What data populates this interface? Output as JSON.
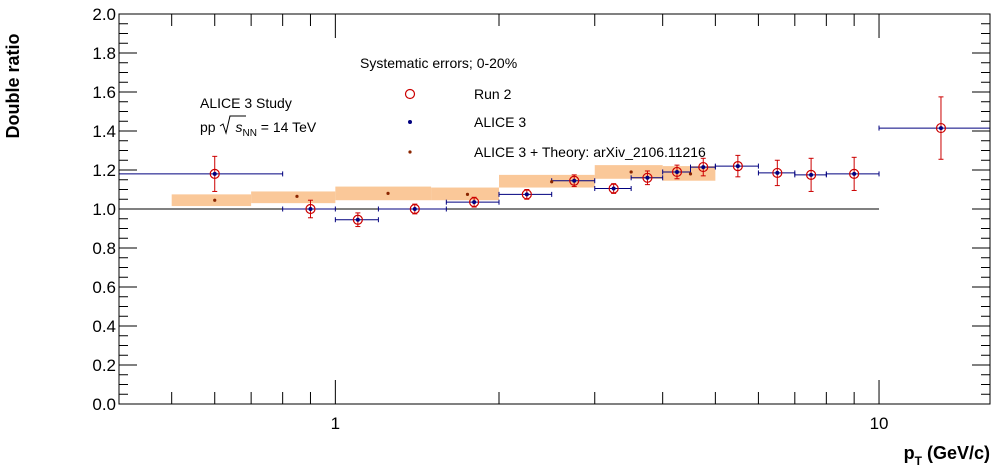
{
  "chart_data": {
    "type": "scatter",
    "xlabel": "p",
    "xlabel_sub": "T",
    "xlabel_unit": "(GeV/c)",
    "ylabel": "Double ratio",
    "x_scale": "log",
    "xlim": [
      0.4,
      16
    ],
    "ylim": [
      0,
      2
    ],
    "yticks": [
      0.0,
      0.2,
      0.4,
      0.6,
      0.8,
      1.0,
      1.2,
      1.4,
      1.6,
      1.8,
      2.0
    ],
    "ytick_labels": [
      "0.0",
      "0.2",
      "0.4",
      "0.6",
      "0.8",
      "1.0",
      "1.2",
      "1.4",
      "1.6",
      "1.8",
      "2.0"
    ],
    "xtick_major": [
      1,
      10
    ],
    "xtick_labels": [
      "1",
      "10"
    ],
    "reference_line_y": 1.0,
    "reference_line_xrange": [
      0.4,
      10
    ],
    "legend": {
      "header": "Systematic errors; 0-20%",
      "entries": [
        "Run 2",
        "ALICE 3",
        "ALICE 3 + Theory: arXiv_2106.11216"
      ],
      "placement": "top-center"
    },
    "annotation": {
      "line1": "ALICE 3 Study",
      "line2_prefix": "pp ",
      "line2_sqrt": "s",
      "line2_sub": "NN",
      "line2_suffix": " = 14 TeV"
    },
    "series": [
      {
        "name": "Run 2",
        "marker": "open-circle",
        "color": "#cc0000",
        "points": [
          {
            "x": 0.6,
            "y": 1.18,
            "err": 0.09
          },
          {
            "x": 0.9,
            "y": 1.0,
            "err": 0.045
          },
          {
            "x": 1.1,
            "y": 0.945,
            "err": 0.035
          },
          {
            "x": 1.4,
            "y": 1.0,
            "err": 0.025
          },
          {
            "x": 1.8,
            "y": 1.035,
            "err": 0.025
          },
          {
            "x": 2.25,
            "y": 1.075,
            "err": 0.025
          },
          {
            "x": 2.75,
            "y": 1.145,
            "err": 0.03
          },
          {
            "x": 3.25,
            "y": 1.105,
            "err": 0.025
          },
          {
            "x": 3.75,
            "y": 1.16,
            "err": 0.035
          },
          {
            "x": 4.25,
            "y": 1.19,
            "err": 0.035
          },
          {
            "x": 4.75,
            "y": 1.215,
            "err": 0.045
          },
          {
            "x": 5.5,
            "y": 1.22,
            "err": 0.055
          },
          {
            "x": 6.5,
            "y": 1.185,
            "err": 0.065
          },
          {
            "x": 7.5,
            "y": 1.175,
            "err": 0.085
          },
          {
            "x": 9.0,
            "y": 1.18,
            "err": 0.085
          },
          {
            "x": 13.0,
            "y": 1.415,
            "err": 0.16
          }
        ]
      },
      {
        "name": "ALICE 3",
        "marker": "dot",
        "color": "#00007f",
        "points": [
          {
            "x": 0.6,
            "y": 1.18,
            "xlo": 0.4,
            "xhi": 0.8
          },
          {
            "x": 0.9,
            "y": 1.0,
            "xlo": 0.8,
            "xhi": 1.0
          },
          {
            "x": 1.1,
            "y": 0.945,
            "xlo": 1.0,
            "xhi": 1.2
          },
          {
            "x": 1.4,
            "y": 1.0,
            "xlo": 1.2,
            "xhi": 1.6
          },
          {
            "x": 1.8,
            "y": 1.035,
            "xlo": 1.6,
            "xhi": 2.0
          },
          {
            "x": 2.25,
            "y": 1.075,
            "xlo": 2.0,
            "xhi": 2.5
          },
          {
            "x": 2.75,
            "y": 1.145,
            "xlo": 2.5,
            "xhi": 3.0
          },
          {
            "x": 3.25,
            "y": 1.105,
            "xlo": 3.0,
            "xhi": 3.5
          },
          {
            "x": 3.75,
            "y": 1.16,
            "xlo": 3.5,
            "xhi": 4.0
          },
          {
            "x": 4.25,
            "y": 1.19,
            "xlo": 4.0,
            "xhi": 4.5
          },
          {
            "x": 4.75,
            "y": 1.215,
            "xlo": 4.5,
            "xhi": 5.0
          },
          {
            "x": 5.5,
            "y": 1.22,
            "xlo": 5.0,
            "xhi": 6.0
          },
          {
            "x": 6.5,
            "y": 1.185,
            "xlo": 6.0,
            "xhi": 7.0
          },
          {
            "x": 7.5,
            "y": 1.175,
            "xlo": 7.0,
            "xhi": 8.0
          },
          {
            "x": 9.0,
            "y": 1.18,
            "xlo": 8.0,
            "xhi": 10.0
          },
          {
            "x": 13.0,
            "y": 1.415,
            "xlo": 10.0,
            "xhi": 16.0
          }
        ]
      },
      {
        "name": "ALICE 3 + Theory: arXiv_2106.11216",
        "marker": "small-dot",
        "color": "#8b2500",
        "band_color": "#fac899",
        "points": [
          {
            "x": 0.6,
            "y": 1.045,
            "xlo": 0.5,
            "xhi": 0.7,
            "ylo": 1.015,
            "yhi": 1.075
          },
          {
            "x": 0.85,
            "y": 1.065,
            "xlo": 0.7,
            "xhi": 1.0,
            "ylo": 1.03,
            "yhi": 1.09
          },
          {
            "x": 1.25,
            "y": 1.08,
            "xlo": 1.0,
            "xhi": 1.5,
            "ylo": 1.045,
            "yhi": 1.115
          },
          {
            "x": 1.75,
            "y": 1.075,
            "xlo": 1.5,
            "xhi": 2.0,
            "ylo": 1.045,
            "yhi": 1.11
          },
          {
            "x": 2.5,
            "y": 1.14,
            "xlo": 2.0,
            "xhi": 3.0,
            "ylo": 1.11,
            "yhi": 1.175
          },
          {
            "x": 3.5,
            "y": 1.19,
            "xlo": 3.0,
            "xhi": 4.0,
            "ylo": 1.155,
            "yhi": 1.225
          },
          {
            "x": 4.5,
            "y": 1.18,
            "xlo": 4.0,
            "xhi": 5.0,
            "ylo": 1.145,
            "yhi": 1.22
          }
        ]
      }
    ]
  }
}
